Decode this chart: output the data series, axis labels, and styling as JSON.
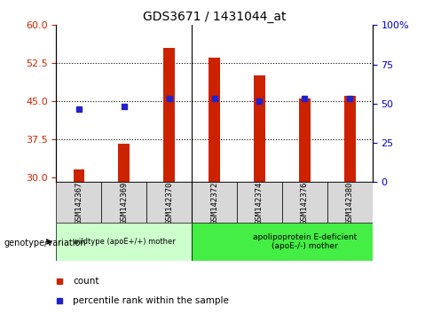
{
  "title": "GDS3671 / 1431044_at",
  "categories": [
    "GSM142367",
    "GSM142369",
    "GSM142370",
    "GSM142372",
    "GSM142374",
    "GSM142376",
    "GSM142380"
  ],
  "bar_values": [
    31.5,
    36.5,
    55.5,
    53.5,
    50.0,
    45.5,
    46.0
  ],
  "percentile_values": [
    43.5,
    44.0,
    45.5,
    45.5,
    45.0,
    45.5,
    45.5
  ],
  "ylim_left": [
    29,
    60
  ],
  "ylim_right": [
    0,
    100
  ],
  "yticks_left": [
    30,
    37.5,
    45,
    52.5,
    60
  ],
  "yticks_right": [
    0,
    25,
    50,
    75,
    100
  ],
  "bar_color": "#cc2200",
  "dot_color": "#2222cc",
  "group1_label": "wildtype (apoE+/+) mother",
  "group2_label": "apolipoprotein E-deficient\n(apoE-/-) mother",
  "group_label_prefix": "genotype/variation",
  "legend_bar_label": "count",
  "legend_dot_label": "percentile rank within the sample",
  "tick_label_color_left": "#cc2200",
  "tick_label_color_right": "#0000cc",
  "bar_width": 0.25,
  "group1_color": "#ccffcc",
  "group2_color": "#44ee44",
  "tickbox_color": "#d8d8d8"
}
